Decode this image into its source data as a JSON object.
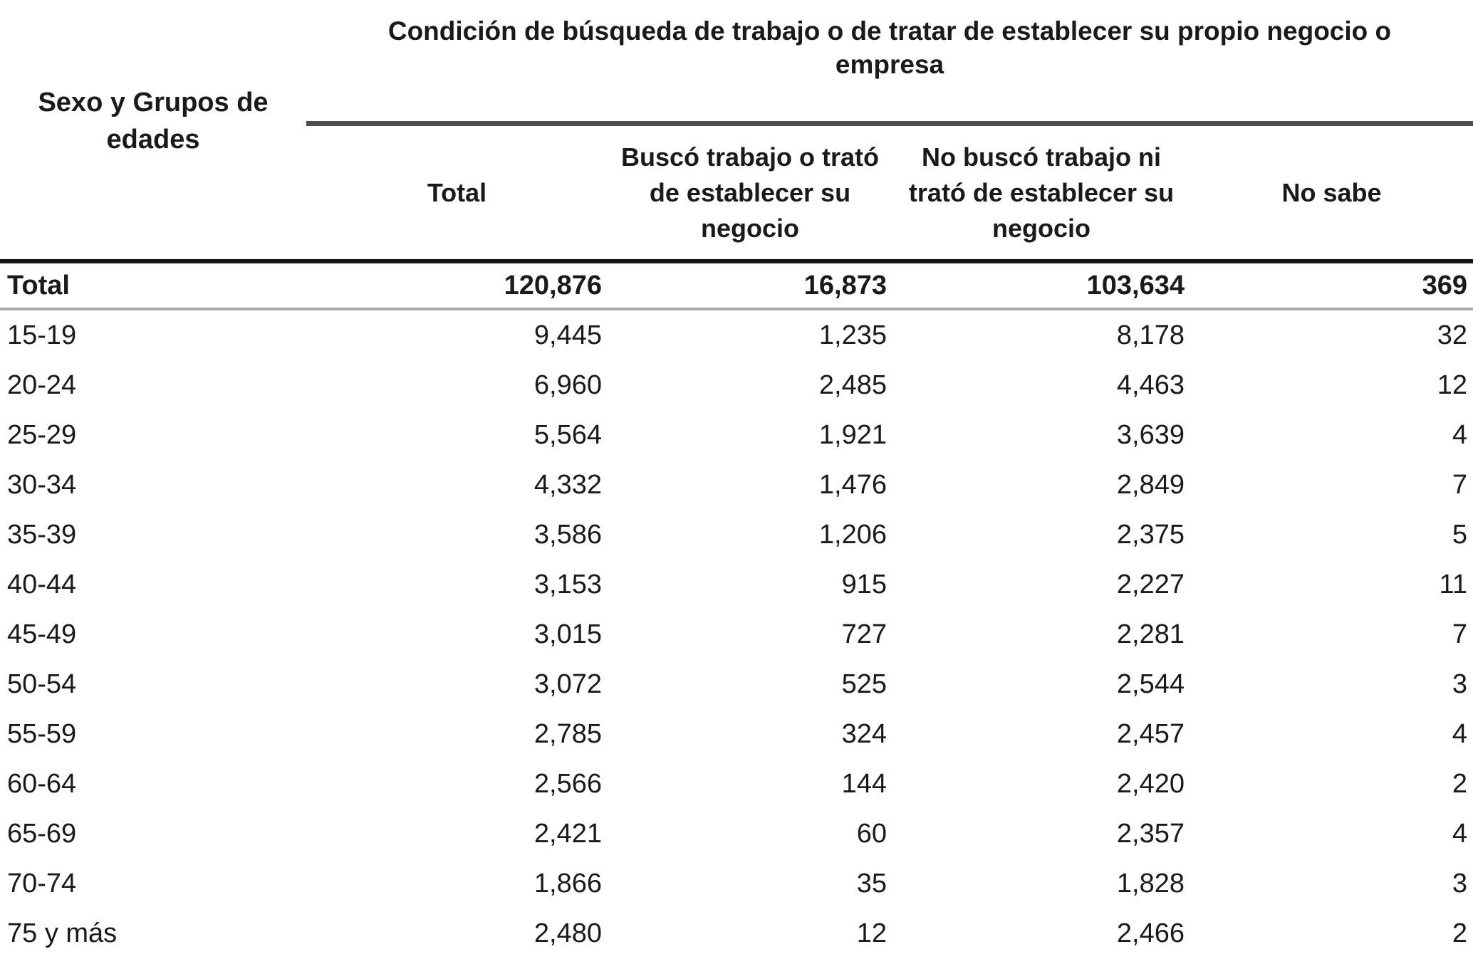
{
  "table": {
    "stub_header": "Sexo y Grupos de edades",
    "group_header": "Condición de búsqueda de trabajo o de tratar de establecer su propio negocio o empresa",
    "columns": {
      "c1": "Total",
      "c2": "Buscó trabajo o trató de establecer su negocio",
      "c3": "No buscó trabajo ni trató de establecer su negocio",
      "c4": "No sabe"
    },
    "total_row": {
      "label": "Total",
      "v1": "120,876",
      "v2": "16,873",
      "v3": "103,634",
      "v4": "369"
    },
    "rows": [
      {
        "label": "15-19",
        "v1": "9,445",
        "v2": "1,235",
        "v3": "8,178",
        "v4": "32"
      },
      {
        "label": "20-24",
        "v1": "6,960",
        "v2": "2,485",
        "v3": "4,463",
        "v4": "12"
      },
      {
        "label": "25-29",
        "v1": "5,564",
        "v2": "1,921",
        "v3": "3,639",
        "v4": "4"
      },
      {
        "label": "30-34",
        "v1": "4,332",
        "v2": "1,476",
        "v3": "2,849",
        "v4": "7"
      },
      {
        "label": "35-39",
        "v1": "3,586",
        "v2": "1,206",
        "v3": "2,375",
        "v4": "5"
      },
      {
        "label": "40-44",
        "v1": "3,153",
        "v2": "915",
        "v3": "2,227",
        "v4": "11"
      },
      {
        "label": "45-49",
        "v1": "3,015",
        "v2": "727",
        "v3": "2,281",
        "v4": "7"
      },
      {
        "label": "50-54",
        "v1": "3,072",
        "v2": "525",
        "v3": "2,544",
        "v4": "3"
      },
      {
        "label": "55-59",
        "v1": "2,785",
        "v2": "324",
        "v3": "2,457",
        "v4": "4"
      },
      {
        "label": "60-64",
        "v1": "2,566",
        "v2": "144",
        "v3": "2,420",
        "v4": "2"
      },
      {
        "label": "65-69",
        "v1": "2,421",
        "v2": "60",
        "v3": "2,357",
        "v4": "4"
      },
      {
        "label": "70-74",
        "v1": "1,866",
        "v2": "35",
        "v3": "1,828",
        "v4": "3"
      },
      {
        "label": "75 y más",
        "v1": "2,480",
        "v2": "12",
        "v3": "2,466",
        "v4": "2"
      }
    ]
  },
  "chart_data": {
    "type": "table",
    "title": "Condición de búsqueda de trabajo o de tratar de establecer su propio negocio o empresa",
    "row_header": "Sexo y Grupos de edades",
    "columns": [
      "Total",
      "Buscó trabajo o trató de establecer su negocio",
      "No buscó trabajo ni trató de establecer su negocio",
      "No sabe"
    ],
    "rows": [
      [
        "Total",
        120876,
        16873,
        103634,
        369
      ],
      [
        "15-19",
        9445,
        1235,
        8178,
        32
      ],
      [
        "20-24",
        6960,
        2485,
        4463,
        12
      ],
      [
        "25-29",
        5564,
        1921,
        3639,
        4
      ],
      [
        "30-34",
        4332,
        1476,
        2849,
        7
      ],
      [
        "35-39",
        3586,
        1206,
        2375,
        5
      ],
      [
        "40-44",
        3153,
        915,
        2227,
        11
      ],
      [
        "45-49",
        3015,
        727,
        2281,
        7
      ],
      [
        "50-54",
        3072,
        525,
        2544,
        3
      ],
      [
        "55-59",
        2785,
        324,
        2457,
        4
      ],
      [
        "60-64",
        2566,
        144,
        2420,
        2
      ],
      [
        "65-69",
        2421,
        60,
        2357,
        4
      ],
      [
        "70-74",
        1866,
        35,
        1828,
        3
      ],
      [
        "75 y más",
        2480,
        12,
        2466,
        2
      ]
    ],
    "colors": {
      "text": "#1a1a1a",
      "group_rule": "#4d4d4d",
      "main_rule": "#141414",
      "light_rule": "#a8a8a8"
    }
  }
}
